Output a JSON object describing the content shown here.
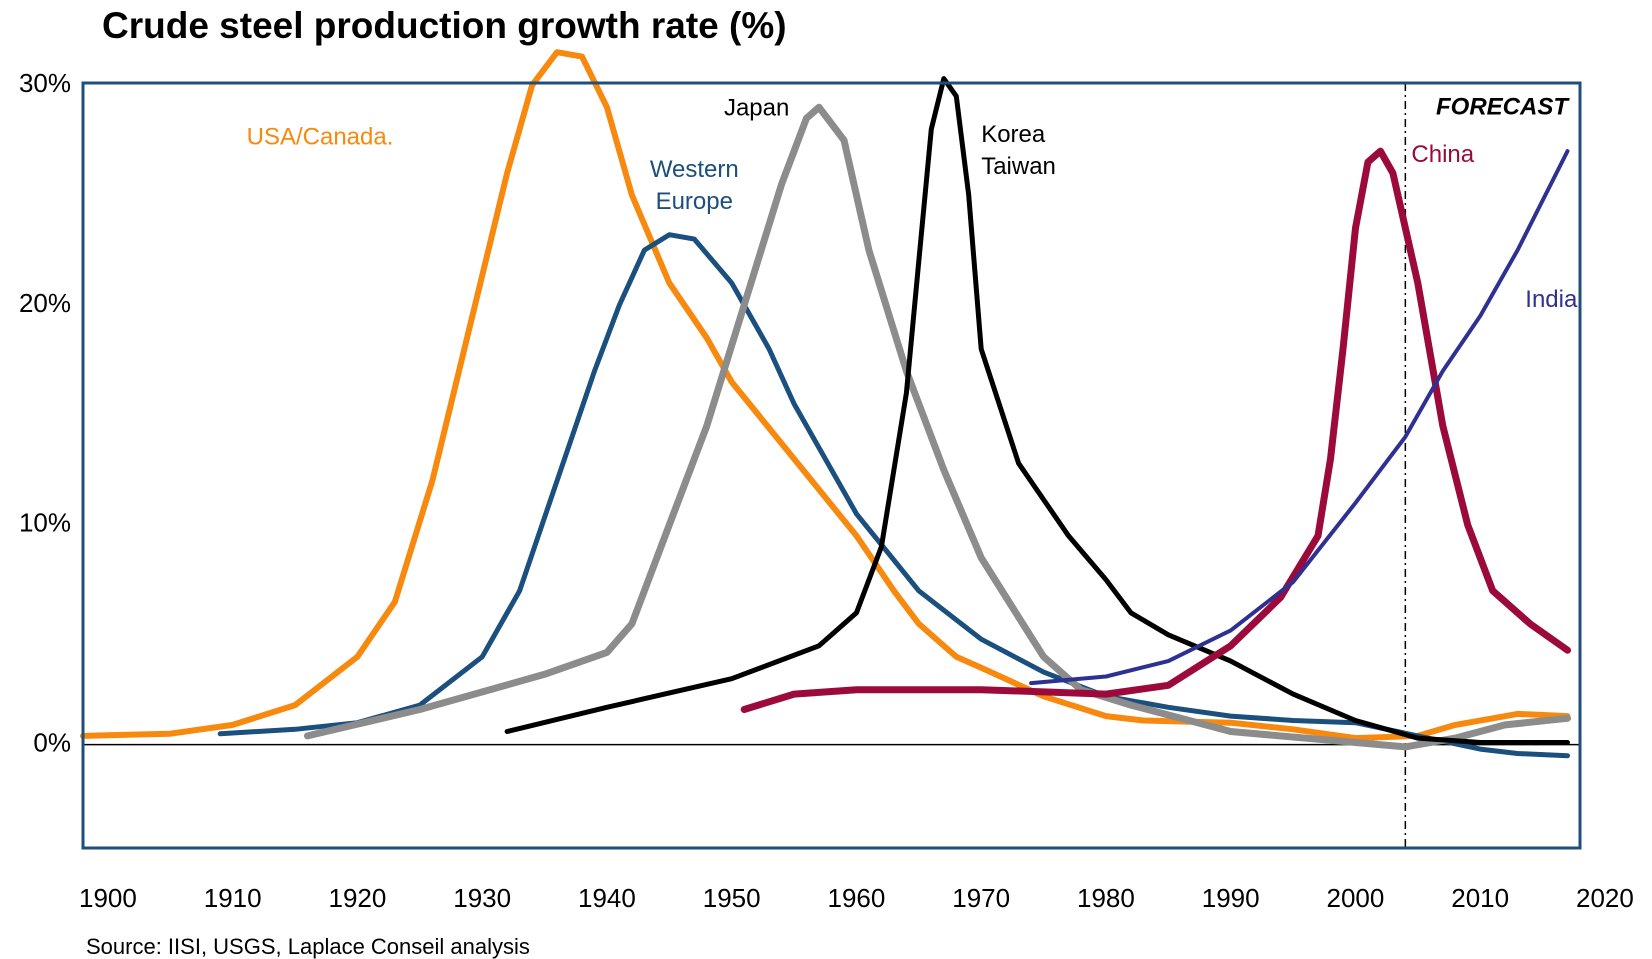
{
  "chart_data": {
    "type": "line",
    "title": "Crude steel production growth rate (%)",
    "source": "Source: IISI, USGS, Laplace Conseil analysis",
    "annotation": "FORECAST",
    "forecast_x": 2004,
    "xlim": [
      1898,
      2018
    ],
    "xticks": [
      1900,
      1910,
      1920,
      1930,
      1940,
      1950,
      1960,
      1970,
      1980,
      1990,
      2000,
      2010,
      2020
    ],
    "ylim": [
      -4.7,
      30.1
    ],
    "yticks": [
      {
        "value": 0,
        "label": "0%"
      },
      {
        "value": 10,
        "label": "10%"
      },
      {
        "value": 20,
        "label": "20%"
      },
      {
        "value": 30,
        "label": "30%"
      }
    ],
    "series": [
      {
        "name": "USA/Canada.",
        "color": "#f7890f",
        "x": [
          1898,
          1905,
          1910,
          1915,
          1920,
          1923,
          1926,
          1929,
          1932,
          1934,
          1936,
          1938,
          1940,
          1942,
          1945,
          1948,
          1950,
          1955,
          1960,
          1963,
          1965,
          1968,
          1970,
          1975,
          1980,
          1983,
          1990,
          1995,
          2000,
          2005,
          2008,
          2013,
          2017
        ],
        "values": [
          0.4,
          0.5,
          0.9,
          1.8,
          4,
          6.5,
          12,
          19,
          26,
          30,
          31.5,
          31.3,
          29,
          25,
          21,
          18.5,
          16.5,
          13,
          9.5,
          7,
          5.5,
          4,
          3.5,
          2.2,
          1.3,
          1.1,
          1.0,
          0.7,
          0.3,
          0.4,
          0.9,
          1.4,
          1.3
        ]
      },
      {
        "name": "Western Europe",
        "color": "#1a4f7e",
        "x": [
          1909,
          1915,
          1920,
          1925,
          1930,
          1933,
          1936,
          1939,
          1941,
          1943,
          1945,
          1947,
          1950,
          1953,
          1955,
          1960,
          1965,
          1970,
          1975,
          1980,
          1985,
          1990,
          1995,
          2000,
          2005,
          2010,
          2013,
          2017
        ],
        "values": [
          0.5,
          0.7,
          1.0,
          1.8,
          4,
          7,
          12,
          17,
          20,
          22.5,
          23.2,
          23,
          21,
          18,
          15.5,
          10.5,
          7,
          4.8,
          3.3,
          2.2,
          1.7,
          1.3,
          1.1,
          1.0,
          0.4,
          -0.2,
          -0.4,
          -0.5
        ]
      },
      {
        "name": "Japan",
        "color": "#8c8c8c",
        "x": [
          1916,
          1925,
          1935,
          1940,
          1942,
          1945,
          1948,
          1951,
          1954,
          1956,
          1957,
          1959,
          1961,
          1964,
          1967,
          1970,
          1975,
          1978,
          1982,
          1990,
          2000,
          2004,
          2008,
          2012,
          2017
        ],
        "values": [
          0.4,
          1.6,
          3.2,
          4.2,
          5.5,
          10,
          14.5,
          20,
          25.5,
          28.5,
          29,
          27.5,
          22.5,
          17,
          12.5,
          8.5,
          4,
          2.5,
          1.8,
          0.6,
          0.1,
          -0.1,
          0.3,
          0.9,
          1.2
        ]
      },
      {
        "name": "Korea Taiwan",
        "color": "#000000",
        "x": [
          1932,
          1940,
          1950,
          1957,
          1960,
          1962,
          1964,
          1965,
          1966,
          1967,
          1968,
          1969,
          1970,
          1973,
          1977,
          1980,
          1982,
          1985,
          1990,
          1995,
          2000,
          2005,
          2010,
          2017
        ],
        "values": [
          0.6,
          1.7,
          3,
          4.5,
          6,
          9,
          16,
          22,
          28,
          30.3,
          29.5,
          25,
          18,
          12.8,
          9.5,
          7.5,
          6,
          5,
          3.8,
          2.3,
          1.1,
          0.3,
          0.1,
          0.1
        ]
      },
      {
        "name": "China",
        "color": "#9b0a3a",
        "x": [
          1951,
          1955,
          1960,
          1970,
          1980,
          1985,
          1990,
          1994,
          1997,
          1998,
          1999,
          2000,
          2001,
          2002,
          2003,
          2005,
          2007,
          2009,
          2011,
          2014,
          2017
        ],
        "values": [
          1.6,
          2.3,
          2.5,
          2.5,
          2.3,
          2.7,
          4.5,
          6.7,
          9.5,
          13,
          18,
          23.5,
          26.5,
          27,
          26,
          21,
          14.5,
          10,
          7,
          5.5,
          4.3
        ]
      },
      {
        "name": "India",
        "color": "#2e3192",
        "x": [
          1974,
          1980,
          1985,
          1990,
          1995,
          2000,
          2004,
          2007,
          2010,
          2013,
          2017
        ],
        "values": [
          2.8,
          3.1,
          3.8,
          5.2,
          7.4,
          11,
          14,
          17,
          19.5,
          22.5,
          27
        ]
      }
    ]
  }
}
